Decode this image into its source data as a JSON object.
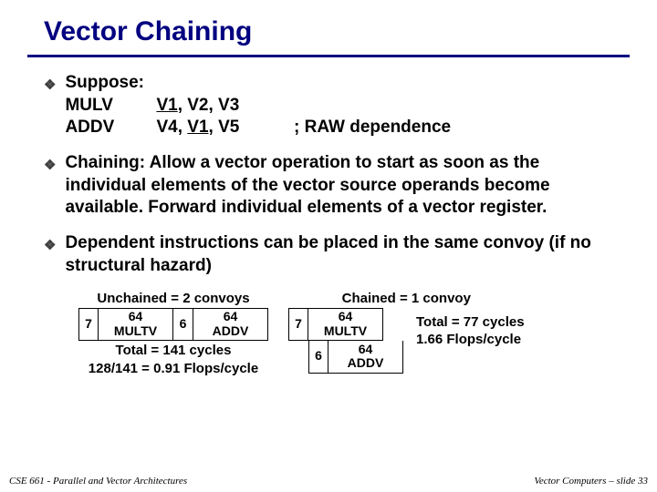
{
  "title": "Vector Chaining",
  "bullet1": {
    "lead": "Suppose:",
    "r1_op": "MULV",
    "r1_p1": "V1",
    "r1_p2": ", V2, V3",
    "r2_op": "ADDV",
    "r2_p1": "V4, ",
    "r2_u": "V1",
    "r2_p3": ", V5",
    "r2_note": "; RAW dependence"
  },
  "bullet2": "Chaining: Allow a vector operation to start as soon as the individual elements of the vector source operands become available. Forward individual elements of a vector register.",
  "bullet3": "Dependent instructions can be placed in the same convoy (if no structural hazard)",
  "unchained": {
    "header": "Unchained = 2 convoys",
    "s1_top": "7",
    "s2_top": "64",
    "s2_bot": "MULTV",
    "s3_top": "6",
    "s4_top": "64",
    "s4_bot": "ADDV",
    "cap1": "Total = 141 cycles",
    "cap2": "128/141 = 0.91 Flops/cycle"
  },
  "chained": {
    "header": "Chained = 1 convoy",
    "s1_top": "7",
    "s2_top": "64",
    "s2_bot": "MULTV",
    "s3_top": "6",
    "s4_top": "64",
    "s4_bot": "ADDV",
    "tot1": "Total = 77 cycles",
    "tot2": "1.66 Flops/cycle"
  },
  "footer": {
    "left": "CSE 661 - Parallel and Vector Architectures",
    "right": "Vector Computers – slide 33"
  }
}
